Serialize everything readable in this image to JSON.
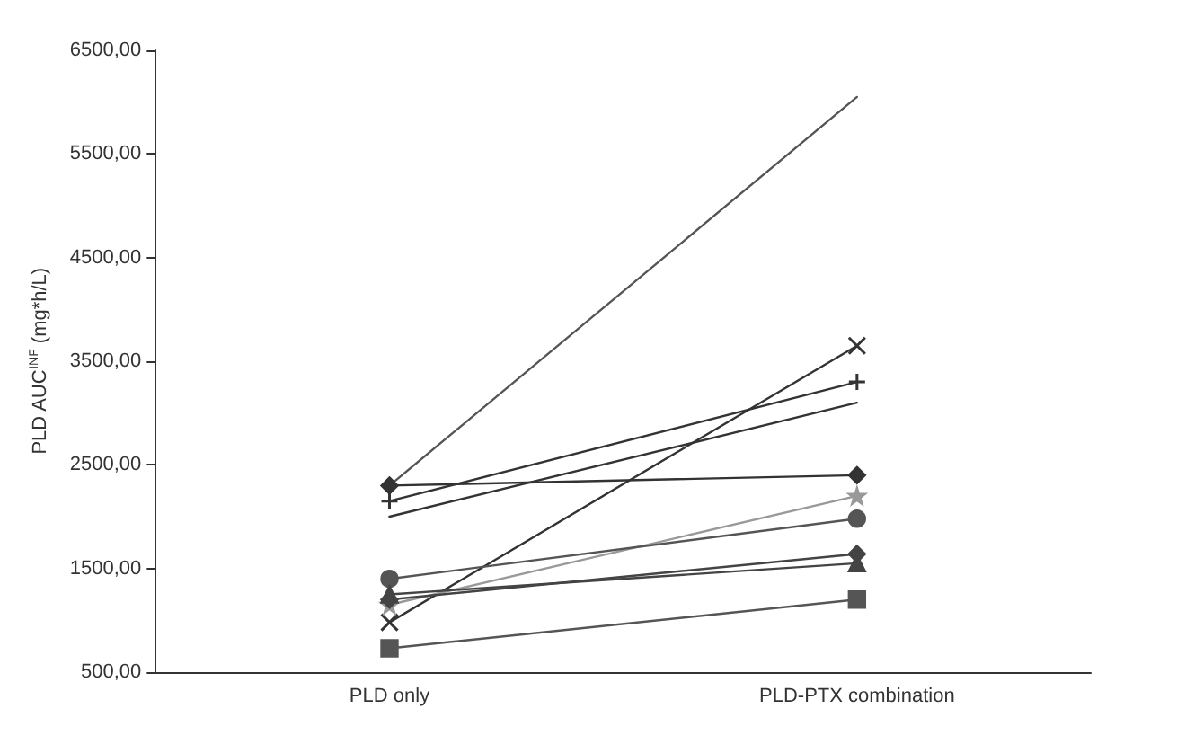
{
  "chart_data": {
    "type": "line",
    "ylabel": "PLD AUC$^{INF}$ (mg*h/L)",
    "categories": [
      "PLD only",
      "PLD-PTX combination"
    ],
    "ylim": [
      500,
      6500
    ],
    "yticks": [
      {
        "value": 500,
        "label": "500,00"
      },
      {
        "value": 1500,
        "label": "1500,00"
      },
      {
        "value": 2500,
        "label": "2500,00"
      },
      {
        "value": 3500,
        "label": "3500,00"
      },
      {
        "value": 4500,
        "label": "4500,00"
      },
      {
        "value": 5500,
        "label": "5500,00"
      },
      {
        "value": 6500,
        "label": "6500,00"
      }
    ],
    "grid": false,
    "series": [
      {
        "color": "#555555",
        "marker": "none",
        "values": [
          2300,
          6050
        ]
      },
      {
        "color": "#333333",
        "marker": "diamond",
        "values": [
          2300,
          2400
        ]
      },
      {
        "color": "#333333",
        "marker": "plus",
        "values": [
          2150,
          3300
        ]
      },
      {
        "color": "#333333",
        "marker": "none",
        "values": [
          2000,
          3100
        ]
      },
      {
        "color": "#333333",
        "marker": "cross",
        "values": [
          980,
          3650
        ]
      },
      {
        "color": "#999999",
        "marker": "star",
        "values": [
          1150,
          2200
        ]
      },
      {
        "color": "#555555",
        "marker": "circle",
        "values": [
          1400,
          1980
        ]
      },
      {
        "color": "#444444",
        "marker": "triangle",
        "values": [
          1250,
          1550
        ]
      },
      {
        "color": "#444444",
        "marker": "diamond",
        "values": [
          1200,
          1640
        ]
      },
      {
        "color": "#555555",
        "marker": "square",
        "values": [
          730,
          1200
        ]
      }
    ]
  }
}
